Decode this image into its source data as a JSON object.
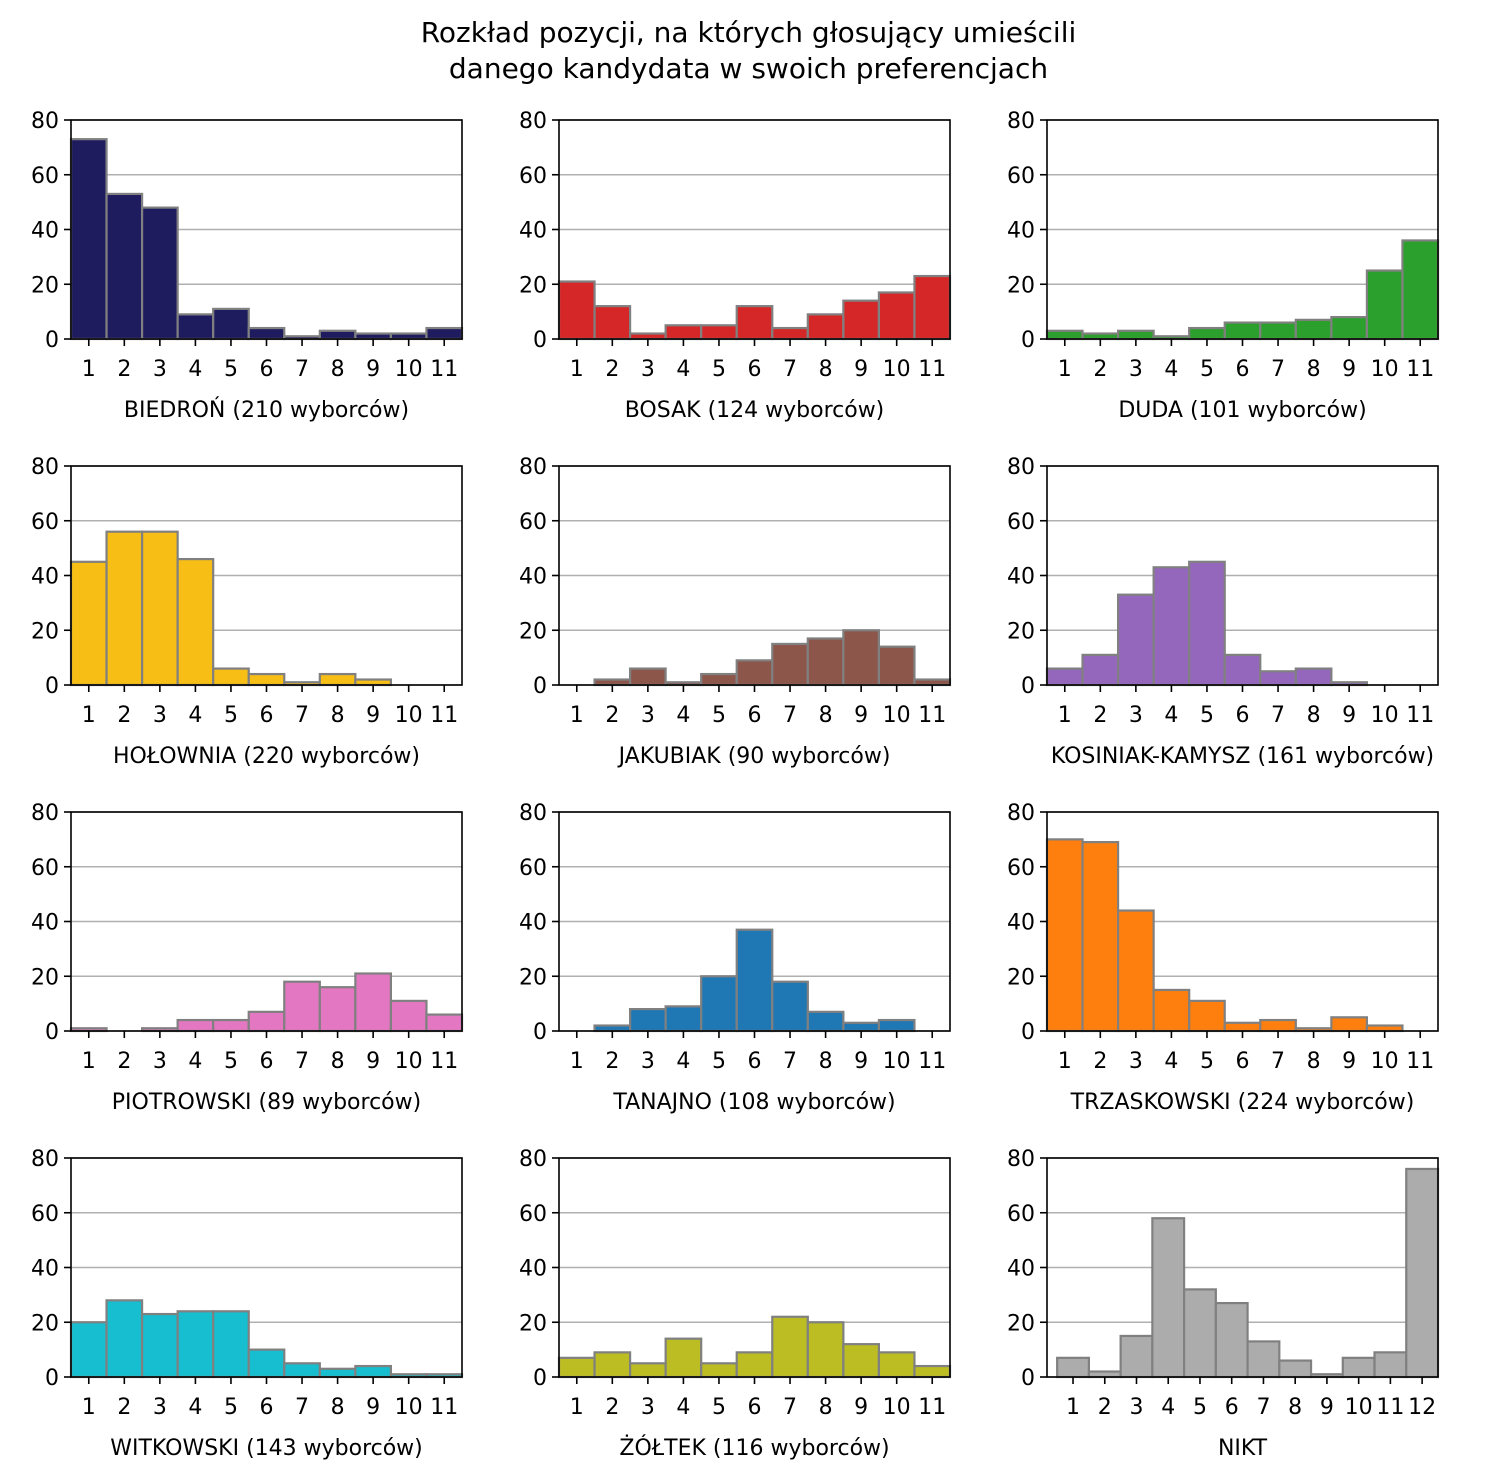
{
  "title": [
    "Rozkład pozycji, na których głosujący umieścili",
    "danego kandydata w swoich preferencjach"
  ],
  "chart_data": [
    {
      "type": "bar",
      "xlabel": "BIEDROŃ (210 wyborców)",
      "color": "#1f1b5f",
      "categories": [
        "1",
        "2",
        "3",
        "4",
        "5",
        "6",
        "7",
        "8",
        "9",
        "10",
        "11"
      ],
      "values": [
        73,
        53,
        48,
        9,
        11,
        4,
        1,
        3,
        2,
        2,
        4
      ],
      "ylim": [
        0,
        80
      ],
      "yticks": [
        0,
        20,
        40,
        60,
        80
      ],
      "grid": "horizontal"
    },
    {
      "type": "bar",
      "xlabel": "BOSAK (124 wyborców)",
      "color": "#d62728",
      "categories": [
        "1",
        "2",
        "3",
        "4",
        "5",
        "6",
        "7",
        "8",
        "9",
        "10",
        "11"
      ],
      "values": [
        21,
        12,
        2,
        5,
        5,
        12,
        4,
        9,
        14,
        17,
        23
      ],
      "ylim": [
        0,
        80
      ],
      "yticks": [
        0,
        20,
        40,
        60,
        80
      ],
      "grid": "horizontal"
    },
    {
      "type": "bar",
      "xlabel": "DUDA (101 wyborców)",
      "color": "#2ca02c",
      "categories": [
        "1",
        "2",
        "3",
        "4",
        "5",
        "6",
        "7",
        "8",
        "9",
        "10",
        "11"
      ],
      "values": [
        3,
        2,
        3,
        1,
        4,
        6,
        6,
        7,
        8,
        25,
        36
      ],
      "ylim": [
        0,
        80
      ],
      "yticks": [
        0,
        20,
        40,
        60,
        80
      ],
      "grid": "horizontal"
    },
    {
      "type": "bar",
      "xlabel": "HOŁOWNIA (220 wyborców)",
      "color": "#f7be16",
      "categories": [
        "1",
        "2",
        "3",
        "4",
        "5",
        "6",
        "7",
        "8",
        "9",
        "10",
        "11"
      ],
      "values": [
        45,
        56,
        56,
        46,
        6,
        4,
        1,
        4,
        2,
        0,
        0
      ],
      "ylim": [
        0,
        80
      ],
      "yticks": [
        0,
        20,
        40,
        60,
        80
      ],
      "grid": "horizontal"
    },
    {
      "type": "bar",
      "xlabel": "JAKUBIAK (90 wyborców)",
      "color": "#8c564b",
      "categories": [
        "1",
        "2",
        "3",
        "4",
        "5",
        "6",
        "7",
        "8",
        "9",
        "10",
        "11"
      ],
      "values": [
        0,
        2,
        6,
        1,
        4,
        9,
        15,
        17,
        20,
        14,
        2
      ],
      "ylim": [
        0,
        80
      ],
      "yticks": [
        0,
        20,
        40,
        60,
        80
      ],
      "grid": "horizontal"
    },
    {
      "type": "bar",
      "xlabel": "KOSINIAK-KAMYSZ (161 wyborców)",
      "color": "#9467bd",
      "categories": [
        "1",
        "2",
        "3",
        "4",
        "5",
        "6",
        "7",
        "8",
        "9",
        "10",
        "11"
      ],
      "values": [
        6,
        11,
        33,
        43,
        45,
        11,
        5,
        6,
        1,
        0,
        0
      ],
      "ylim": [
        0,
        80
      ],
      "yticks": [
        0,
        20,
        40,
        60,
        80
      ],
      "grid": "horizontal"
    },
    {
      "type": "bar",
      "xlabel": "PIOTROWSKI (89 wyborców)",
      "color": "#e377c2",
      "categories": [
        "1",
        "2",
        "3",
        "4",
        "5",
        "6",
        "7",
        "8",
        "9",
        "10",
        "11"
      ],
      "values": [
        1,
        0,
        1,
        4,
        4,
        7,
        18,
        16,
        21,
        11,
        6
      ],
      "ylim": [
        0,
        80
      ],
      "yticks": [
        0,
        20,
        40,
        60,
        80
      ],
      "grid": "horizontal"
    },
    {
      "type": "bar",
      "xlabel": "TANAJNO (108 wyborców)",
      "color": "#1f77b4",
      "categories": [
        "1",
        "2",
        "3",
        "4",
        "5",
        "6",
        "7",
        "8",
        "9",
        "10",
        "11"
      ],
      "values": [
        0,
        2,
        8,
        9,
        20,
        37,
        18,
        7,
        3,
        4,
        0
      ],
      "ylim": [
        0,
        80
      ],
      "yticks": [
        0,
        20,
        40,
        60,
        80
      ],
      "grid": "horizontal"
    },
    {
      "type": "bar",
      "xlabel": "TRZASKOWSKI (224 wyborców)",
      "color": "#ff7f0e",
      "categories": [
        "1",
        "2",
        "3",
        "4",
        "5",
        "6",
        "7",
        "8",
        "9",
        "10",
        "11"
      ],
      "values": [
        70,
        69,
        44,
        15,
        11,
        3,
        4,
        1,
        5,
        2,
        0
      ],
      "ylim": [
        0,
        80
      ],
      "yticks": [
        0,
        20,
        40,
        60,
        80
      ],
      "grid": "horizontal"
    },
    {
      "type": "bar",
      "xlabel": "WITKOWSKI (143 wyborców)",
      "color": "#17becf",
      "categories": [
        "1",
        "2",
        "3",
        "4",
        "5",
        "6",
        "7",
        "8",
        "9",
        "10",
        "11"
      ],
      "values": [
        20,
        28,
        23,
        24,
        24,
        10,
        5,
        3,
        4,
        1,
        1
      ],
      "ylim": [
        0,
        80
      ],
      "yticks": [
        0,
        20,
        40,
        60,
        80
      ],
      "grid": "horizontal"
    },
    {
      "type": "bar",
      "xlabel": "ŻÓŁTEK (116 wyborców)",
      "color": "#bcbd22",
      "categories": [
        "1",
        "2",
        "3",
        "4",
        "5",
        "6",
        "7",
        "8",
        "9",
        "10",
        "11"
      ],
      "values": [
        7,
        9,
        5,
        14,
        5,
        9,
        22,
        20,
        12,
        9,
        4
      ],
      "ylim": [
        0,
        80
      ],
      "yticks": [
        0,
        20,
        40,
        60,
        80
      ],
      "grid": "horizontal"
    },
    {
      "type": "bar",
      "xlabel": "NIKT",
      "color": "#acacac",
      "categories": [
        "1",
        "2",
        "3",
        "4",
        "5",
        "6",
        "7",
        "8",
        "9",
        "10",
        "11",
        "12"
      ],
      "values": [
        7,
        2,
        15,
        58,
        32,
        27,
        13,
        6,
        1,
        7,
        9,
        76
      ],
      "ylim": [
        0,
        80
      ],
      "yticks": [
        0,
        20,
        40,
        60,
        80
      ],
      "grid": "horizontal"
    }
  ]
}
